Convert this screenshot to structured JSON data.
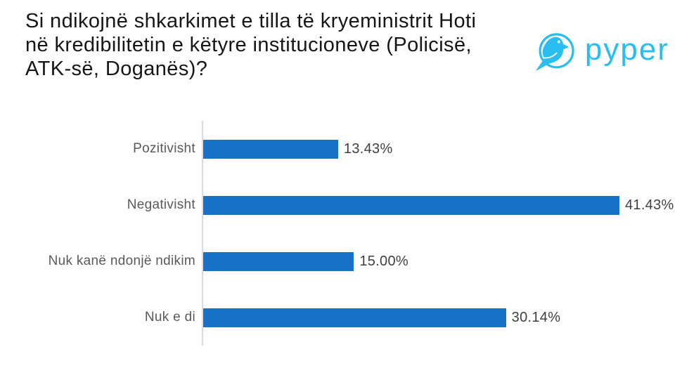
{
  "header": {
    "title_lines": [
      "Si ndikojnë shkarkimet e tilla të kryeministrit Hoti",
      "në kredibilitetin e këtyre institucioneve (Policisë,",
      "ATK-së, Doganës)?"
    ],
    "logo": {
      "brand": "pyper",
      "icon": "bird-in-circle-icon",
      "color": "#29BDF0"
    }
  },
  "chart_data": {
    "type": "bar",
    "orientation": "horizontal",
    "title": "Si ndikojnë shkarkimet e tilla të kryeministrit Hoti në kredibilitetin e këtyre institucioneve (Policisë, ATK-së, Doganës)?",
    "categories": [
      "Pozitivisht",
      "Negativisht",
      "Nuk kanë ndonjë ndikim",
      "Nuk e di"
    ],
    "values": [
      13.43,
      41.43,
      15.0,
      30.14
    ],
    "value_labels": [
      "13.43%",
      "41.43%",
      "15.00%",
      "30.14%"
    ],
    "xlabel": "",
    "ylabel": "",
    "xlim": [
      0,
      45
    ],
    "grid": false,
    "legend": false,
    "bar_color": "#1771C7",
    "axis_line_color": "#D9D9D9",
    "category_label_color": "#595959",
    "value_label_color": "#3F3F3F"
  }
}
